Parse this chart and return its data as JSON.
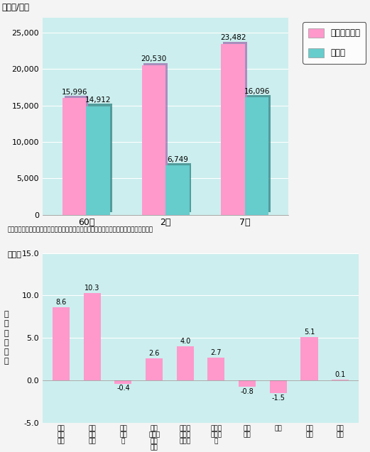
{
  "chart1": {
    "categories": [
      "60年",
      "2年",
      "7年"
    ],
    "info_values": [
      15996,
      20530,
      23482
    ],
    "all_values": [
      14912,
      6749,
      16096
    ],
    "info_labels": [
      "15,996",
      "20,530",
      "23,482"
    ],
    "all_labels": [
      "14,912",
      "6,749",
      "16,096"
    ],
    "ylabel": "（千円/人）",
    "ylim": [
      0,
      27000
    ],
    "yticks": [
      0,
      5000,
      10000,
      15000,
      20000,
      25000
    ],
    "info_color": "#FF99CC",
    "all_color": "#66CCCC",
    "all_dark_color": "#338888",
    "bg_color": "#CCEEEE",
    "legend_info": "情報通信産業",
    "legend_all": "全産業",
    "source_text": "郵政省資料、産業連関表（総務庁）、産業連関表（延長表）（通商産業省）等により作成"
  },
  "chart2": {
    "values": [
      8.6,
      10.3,
      -0.4,
      2.6,
      4.0,
      2.7,
      -0.8,
      -1.5,
      5.1,
      0.1
    ],
    "labels": [
      "8.6",
      "10.3",
      "-0.4",
      "2.6",
      "4.0",
      "2.7",
      "-0.8",
      "-1.5",
      "5.1",
      "0.1"
    ],
    "x_labels": [
      "国内\n信電\n気通",
      "国際\n信電\n気通",
      "総務\n体通\n信",
      "サー\nビス情\n報通\n信計",
      "支援情\n担当財\n通信計",
      "情報通\n信産業\n計",
      "化学\n製品",
      "鉄鉰",
      "電気\n機械",
      "輸送\n機械"
    ],
    "ylabel": "年\n平\n均\n成\n長\n率",
    "pct_label": "（％）",
    "ylim": [
      -5.0,
      15.0
    ],
    "yticks": [
      -5.0,
      0.0,
      5.0,
      10.0,
      15.0
    ],
    "bar_color": "#FF99CC",
    "bg_color": "#CCEEEE"
  },
  "fig_bg": "#F4F4F4"
}
